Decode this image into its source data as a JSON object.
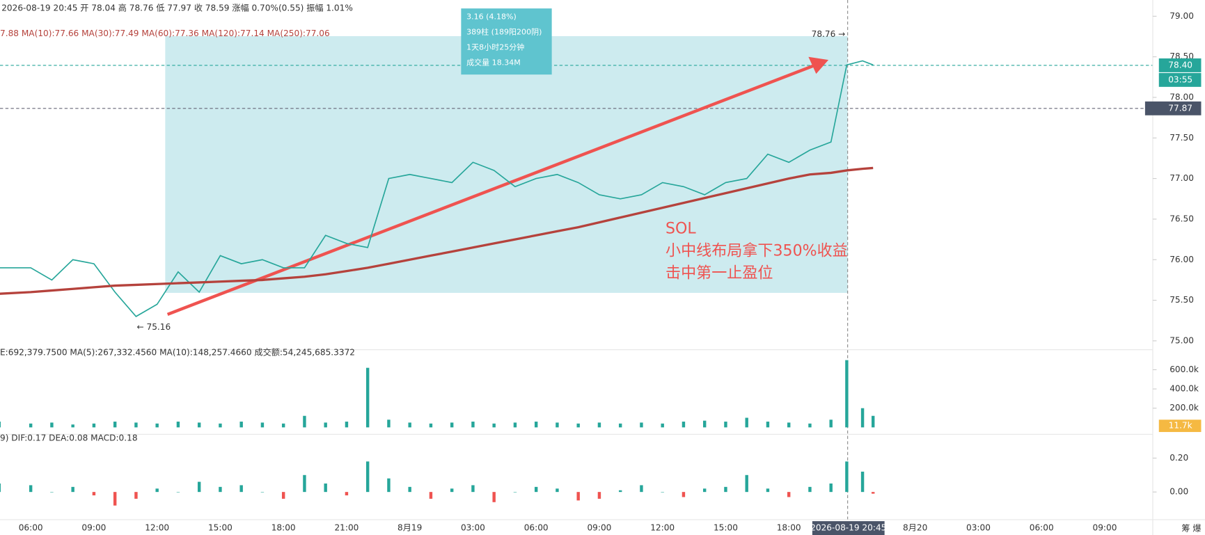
{
  "header": {
    "ohlc": "2026-08-19 20:45 开 78.04 高 78.76 低 77.97 收 78.59 涨幅 0.70%(0.55) 振幅 1.01%",
    "ma": "7.88 MA(10):77.66 MA(30):77.49 MA(60):77.36 MA(120):77.14 MA(250):77.06",
    "volume": "E:692,379.7500 MA(5):267,332.4560 MA(10):148,257.4660 成交额:54,245,685.3372",
    "macd": "9) DIF:0.17 DEA:0.08 MACD:0.18"
  },
  "measure_box": [
    "3.16 (4.18%)",
    "389柱 (189阳200阴)",
    "1天8小时25分钟",
    "成交量 18.34M"
  ],
  "annotation": [
    "SOL",
    "小中线布局拿下350%收益",
    "击中第一止盈位"
  ],
  "high_label": "78.76 →",
  "low_label": "← 75.16",
  "price_tags": [
    "78.40",
    "03:55",
    "77.87"
  ],
  "volume_tag": "11.7k",
  "crosshair_time": "2026-08-19 20:45",
  "corner_icons": "筹 爆",
  "chart_data": {
    "type": "line",
    "xlim": [
      -1.46,
      53.28
    ],
    "xticks": [
      {
        "value": 0,
        "label": "06:00"
      },
      {
        "value": 3,
        "label": "09:00"
      },
      {
        "value": 6,
        "label": "12:00"
      },
      {
        "value": 9,
        "label": "15:00"
      },
      {
        "value": 12,
        "label": "18:00"
      },
      {
        "value": 15,
        "label": "21:00"
      },
      {
        "value": 18,
        "label": "8月19"
      },
      {
        "value": 21,
        "label": "03:00"
      },
      {
        "value": 24,
        "label": "06:00"
      },
      {
        "value": 27,
        "label": "09:00"
      },
      {
        "value": 30,
        "label": "12:00"
      },
      {
        "value": 33,
        "label": "15:00"
      },
      {
        "value": 36,
        "label": "18:00"
      },
      {
        "value": 42,
        "label": "8月20"
      },
      {
        "value": 45,
        "label": "03:00"
      },
      {
        "value": 48,
        "label": "06:00"
      },
      {
        "value": 51,
        "label": "09:00"
      }
    ],
    "x": [
      -1.5,
      0,
      1,
      2,
      3,
      4,
      5,
      6,
      7,
      8,
      9,
      10,
      11,
      12,
      13,
      14,
      15,
      16,
      17,
      18,
      19,
      20,
      21,
      22,
      23,
      24,
      25,
      26,
      27,
      28,
      29,
      30,
      31,
      32,
      33,
      34,
      35,
      36,
      37,
      38,
      38.75,
      39.5,
      40
    ],
    "ylim": [
      74.89,
      79.2
    ],
    "yticks": [
      {
        "value": 75,
        "label": "75.00"
      },
      {
        "value": 75.5,
        "label": "75.50"
      },
      {
        "value": 76,
        "label": "76.00"
      },
      {
        "value": 76.5,
        "label": "76.50"
      },
      {
        "value": 77,
        "label": "77.00"
      },
      {
        "value": 77.5,
        "label": "77.50"
      },
      {
        "value": 78,
        "label": "78.00"
      },
      {
        "value": 78.5,
        "label": "78.50"
      },
      {
        "value": 79,
        "label": "79.00"
      }
    ],
    "series": [
      {
        "name": "收",
        "color": "#26a69a",
        "values": [
          75.9,
          75.9,
          75.75,
          76.0,
          75.95,
          75.6,
          75.3,
          75.45,
          75.85,
          75.6,
          76.05,
          75.95,
          76.0,
          75.9,
          75.9,
          76.3,
          76.2,
          76.15,
          77.0,
          77.05,
          77.0,
          76.95,
          77.2,
          77.1,
          76.9,
          77.0,
          77.05,
          76.95,
          76.8,
          76.75,
          76.8,
          76.95,
          76.9,
          76.8,
          76.95,
          77.0,
          77.3,
          77.2,
          77.35,
          77.45,
          78.4,
          78.45,
          78.4
        ]
      },
      {
        "name": "MA(250)",
        "color": "#b5423c",
        "values": [
          75.58,
          75.6,
          75.62,
          75.64,
          75.66,
          75.68,
          75.69,
          75.7,
          75.71,
          75.72,
          75.73,
          75.74,
          75.75,
          75.77,
          75.79,
          75.82,
          75.86,
          75.9,
          75.95,
          76.0,
          76.05,
          76.1,
          76.15,
          76.2,
          76.25,
          76.3,
          76.35,
          76.4,
          76.46,
          76.52,
          76.58,
          76.64,
          76.7,
          76.76,
          76.82,
          76.88,
          76.94,
          77.0,
          77.05,
          77.07,
          77.1,
          77.12,
          77.13
        ]
      }
    ],
    "volume": {
      "ylim": [
        0,
        720
      ],
      "yticks": [
        {
          "value": 200,
          "label": "200.0k"
        },
        {
          "value": 400,
          "label": "400.0k"
        },
        {
          "value": 600,
          "label": "600.0k"
        }
      ],
      "color": "#26a69a",
      "values": [
        60,
        40,
        50,
        30,
        40,
        60,
        50,
        40,
        60,
        50,
        40,
        60,
        50,
        40,
        120,
        50,
        60,
        620,
        80,
        50,
        40,
        50,
        60,
        40,
        50,
        60,
        50,
        40,
        50,
        40,
        50,
        40,
        60,
        70,
        60,
        100,
        60,
        50,
        40,
        80,
        700,
        200,
        120
      ]
    },
    "macd": {
      "ylim": [
        -0.145,
        0.295
      ],
      "yticks": [
        {
          "value": 0,
          "label": "0.00"
        },
        {
          "value": 0.2,
          "label": "0.20"
        }
      ],
      "colors": [
        "#26a69a",
        "#ef5350"
      ],
      "values": [
        0.05,
        0.04,
        0.0,
        0.03,
        -0.02,
        -0.08,
        -0.04,
        0.02,
        0.0,
        0.06,
        0.03,
        0.04,
        0.0,
        -0.04,
        0.1,
        0.05,
        -0.02,
        0.18,
        0.08,
        0.03,
        -0.04,
        0.02,
        0.04,
        -0.06,
        0.0,
        0.03,
        0.02,
        -0.05,
        -0.04,
        0.01,
        0.04,
        0.0,
        -0.03,
        0.02,
        0.03,
        0.1,
        0.02,
        -0.03,
        0.03,
        0.05,
        0.18,
        0.12,
        -0.01
      ]
    }
  }
}
